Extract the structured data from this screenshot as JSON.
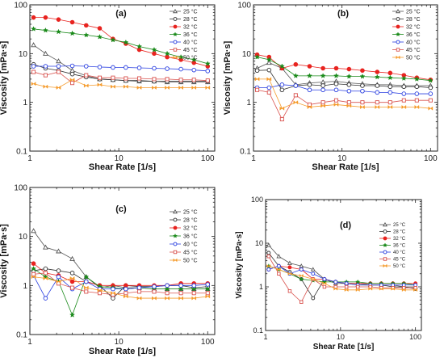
{
  "figure": {
    "xlabel": "Shear Rate [1/s]",
    "ylabel": "Viscosity [mPa·s]"
  },
  "series_style": {
    "25 °C": {
      "color": "#555555",
      "marker": "triangle-open"
    },
    "28 °C": {
      "color": "#333333",
      "marker": "circle-open"
    },
    "32 °C": {
      "color": "#e8231f",
      "marker": "circle-filled"
    },
    "36 °C": {
      "color": "#1a8a1a",
      "marker": "star"
    },
    "40 °C": {
      "color": "#2a3fe0",
      "marker": "circle-open"
    },
    "45 °C": {
      "color": "#d9534f",
      "marker": "square-open"
    },
    "50 °C": {
      "color": "#f59b2c",
      "marker": "bowtie"
    }
  },
  "chart_data": [
    {
      "type": "line",
      "panel": "(a)",
      "xscale": "log",
      "yscale": "log",
      "xlim": [
        1,
        120
      ],
      "ylim": [
        0.1,
        100
      ],
      "xticks": [
        "1",
        "10",
        "100"
      ],
      "yticks": [
        "0.1",
        "1",
        "10",
        "100"
      ],
      "xlabel": "Shear Rate [1/s]",
      "ylabel": "Viscosity [mPa·s]",
      "legend": "top-right",
      "series": [
        {
          "name": "25 °C",
          "x": [
            1.1,
            1.5,
            2.1,
            3.0,
            4.3,
            6.1,
            8.6,
            12,
            17,
            25,
            35,
            50,
            70,
            100
          ],
          "y": [
            15,
            10,
            7,
            4.5,
            3.5,
            3.0,
            2.9,
            2.8,
            2.7,
            2.7,
            2.6,
            2.6,
            2.6,
            2.6
          ]
        },
        {
          "name": "28 °C",
          "x": [
            1.1,
            1.5,
            2.1,
            3.0,
            4.3,
            6.1,
            8.6,
            12,
            17,
            25,
            35,
            50,
            70,
            100
          ],
          "y": [
            6,
            5,
            4.5,
            3.8,
            3.3,
            3.0,
            2.9,
            2.8,
            2.8,
            2.7,
            2.7,
            2.7,
            2.7,
            2.7
          ]
        },
        {
          "name": "32 °C",
          "x": [
            1.1,
            1.5,
            2.1,
            3.0,
            4.3,
            6.1,
            8.6,
            12,
            17,
            25,
            35,
            50,
            70,
            100
          ],
          "y": [
            55,
            55,
            50,
            44,
            38,
            33,
            20,
            16,
            12,
            10,
            8.5,
            7.5,
            6.5,
            5.5
          ]
        },
        {
          "name": "36 °C",
          "x": [
            1.1,
            1.5,
            2.1,
            3.0,
            4.3,
            6.1,
            8.6,
            12,
            17,
            25,
            35,
            50,
            70,
            100
          ],
          "y": [
            32,
            30,
            28,
            26,
            24,
            22,
            19,
            17,
            14,
            12,
            10,
            8.5,
            7.5,
            6.2
          ]
        },
        {
          "name": "40 °C",
          "x": [
            1.1,
            1.5,
            2.1,
            3.0,
            4.3,
            6.1,
            8.6,
            12,
            17,
            25,
            35,
            50,
            70,
            100
          ],
          "y": [
            5.5,
            5.5,
            5.5,
            5.6,
            5.5,
            5.3,
            5.2,
            5.2,
            5.1,
            5.0,
            4.9,
            4.8,
            4.6,
            4.4
          ]
        },
        {
          "name": "45 °C",
          "x": [
            1.1,
            1.5,
            2.1,
            3.0,
            4.3,
            6.1,
            8.6,
            12,
            17,
            25,
            35,
            50,
            70,
            100
          ],
          "y": [
            4.2,
            3.6,
            4.2,
            2.5,
            3.6,
            3.2,
            3.2,
            3.1,
            3.1,
            3.0,
            3.0,
            2.9,
            2.9,
            2.8
          ]
        },
        {
          "name": "50 °C",
          "x": [
            1.1,
            1.5,
            2.1,
            3.0,
            4.3,
            6.1,
            8.6,
            12,
            17,
            25,
            35,
            50,
            70,
            100
          ],
          "y": [
            2.4,
            2.1,
            2.0,
            2.9,
            2.2,
            2.3,
            2.1,
            2.1,
            2.0,
            2.0,
            2.0,
            2.0,
            2.0,
            2.0
          ]
        }
      ]
    },
    {
      "type": "line",
      "panel": "(b)",
      "xscale": "log",
      "yscale": "log",
      "xlim": [
        1,
        120
      ],
      "ylim": [
        0.1,
        100
      ],
      "xticks": [
        "1",
        "10",
        "100"
      ],
      "yticks": [
        "0.1",
        "1",
        "10",
        "100"
      ],
      "xlabel": "Shear Rate [1/s]",
      "ylabel": "Viscosity [mPa·s]",
      "legend": "top-right",
      "series": [
        {
          "name": "25 °C",
          "x": [
            1.1,
            1.5,
            2.1,
            3.0,
            4.3,
            6.1,
            8.6,
            12,
            17,
            25,
            35,
            50,
            70,
            100
          ],
          "y": [
            5.0,
            6.5,
            5.0,
            2.3,
            2.5,
            2.6,
            2.7,
            2.5,
            2.4,
            2.3,
            2.3,
            2.2,
            2.2,
            2.2
          ]
        },
        {
          "name": "28 °C",
          "x": [
            1.1,
            1.5,
            2.1,
            3.0,
            4.3,
            6.1,
            8.6,
            12,
            17,
            25,
            35,
            50,
            70,
            100
          ],
          "y": [
            4.5,
            4.6,
            1.8,
            2.2,
            2.3,
            2.2,
            2.4,
            2.3,
            2.2,
            2.2,
            2.1,
            2.1,
            2.1,
            2.0
          ]
        },
        {
          "name": "32 °C",
          "x": [
            1.1,
            1.5,
            2.1,
            3.0,
            4.3,
            6.1,
            8.6,
            12,
            17,
            25,
            35,
            50,
            70,
            100
          ],
          "y": [
            9.5,
            8.5,
            5.0,
            6.0,
            5.5,
            5.0,
            5.0,
            4.8,
            4.5,
            4.2,
            4.0,
            3.6,
            3.2,
            2.9
          ]
        },
        {
          "name": "36 °C",
          "x": [
            1.1,
            1.5,
            2.1,
            3.0,
            4.3,
            6.1,
            8.6,
            12,
            17,
            25,
            35,
            50,
            70,
            100
          ],
          "y": [
            8.5,
            7.5,
            5.5,
            3.5,
            3.5,
            3.5,
            3.5,
            3.4,
            3.4,
            3.3,
            3.2,
            3.1,
            3.0,
            2.8
          ]
        },
        {
          "name": "40 °C",
          "x": [
            1.1,
            1.5,
            2.1,
            3.0,
            4.3,
            6.1,
            8.6,
            12,
            17,
            25,
            35,
            50,
            70,
            100
          ],
          "y": [
            2.0,
            2.0,
            2.3,
            2.2,
            1.8,
            1.8,
            1.8,
            1.7,
            1.7,
            1.6,
            1.6,
            1.5,
            1.5,
            1.5
          ]
        },
        {
          "name": "45 °C",
          "x": [
            1.1,
            1.5,
            2.1,
            3.0,
            4.3,
            6.1,
            8.6,
            12,
            17,
            25,
            35,
            50,
            70,
            100
          ],
          "y": [
            1.8,
            1.6,
            0.45,
            1.4,
            0.9,
            1.0,
            1.1,
            1.0,
            1.0,
            1.0,
            1.0,
            1.1,
            1.1,
            1.1
          ]
        },
        {
          "name": "50 °C",
          "x": [
            1.1,
            1.5,
            2.1,
            3.0,
            4.3,
            6.1,
            8.6,
            12,
            17,
            25,
            35,
            50,
            70,
            100
          ],
          "y": [
            3.0,
            3.0,
            0.75,
            1.0,
            0.8,
            0.85,
            0.9,
            0.85,
            0.8,
            0.8,
            0.8,
            0.8,
            0.8,
            0.75
          ]
        }
      ]
    },
    {
      "type": "line",
      "panel": "(c)",
      "xscale": "log",
      "yscale": "log",
      "xlim": [
        1,
        120
      ],
      "ylim": [
        0.1,
        100
      ],
      "xticks": [
        "1",
        "10",
        "100"
      ],
      "yticks": [
        "0.1",
        "1",
        "10",
        "100"
      ],
      "xlabel": "Shear Rate [1/s]",
      "ylabel": "Viscosity [mPa·s]",
      "legend": "top-right",
      "series": [
        {
          "name": "25 °C",
          "x": [
            1.1,
            1.5,
            2.1,
            3.0,
            4.3,
            6.1,
            8.6,
            12,
            17,
            25,
            35,
            50,
            70,
            100
          ],
          "y": [
            13,
            6,
            5.0,
            3.5,
            1.5,
            0.9,
            1.0,
            0.9,
            0.9,
            0.85,
            0.85,
            0.85,
            0.85,
            0.85
          ]
        },
        {
          "name": "28 °C",
          "x": [
            1.1,
            1.5,
            2.1,
            3.0,
            4.3,
            6.1,
            8.6,
            12,
            17,
            25,
            35,
            50,
            70,
            100
          ],
          "y": [
            2.0,
            2.2,
            2.0,
            1.8,
            1.2,
            1.0,
            0.55,
            1.0,
            0.95,
            0.95,
            1.0,
            1.0,
            0.9,
            0.95
          ]
        },
        {
          "name": "32 °C",
          "x": [
            1.1,
            1.5,
            2.1,
            3.0,
            4.3,
            6.1,
            8.6,
            12,
            17,
            25,
            35,
            50,
            70,
            100
          ],
          "y": [
            2.8,
            1.8,
            1.6,
            1.2,
            1.2,
            1.0,
            1.0,
            1.0,
            1.0,
            1.0,
            1.0,
            1.1,
            1.1,
            1.1
          ]
        },
        {
          "name": "36 °C",
          "x": [
            1.1,
            1.5,
            2.1,
            3.0,
            4.3,
            6.1,
            8.6,
            12,
            17,
            25,
            35,
            50,
            70,
            100
          ],
          "y": [
            2.2,
            1.5,
            1.2,
            0.25,
            1.5,
            0.95,
            0.9,
            0.85,
            0.9,
            0.85,
            0.85,
            0.85,
            0.85,
            0.85
          ]
        },
        {
          "name": "40 °C",
          "x": [
            1.1,
            1.5,
            2.1,
            3.0,
            4.3,
            6.1,
            8.6,
            12,
            17,
            25,
            35,
            50,
            70,
            100
          ],
          "y": [
            1.6,
            0.55,
            1.5,
            0.85,
            1.2,
            0.85,
            0.85,
            0.85,
            0.9,
            0.95,
            1.0,
            1.0,
            1.0,
            1.05
          ]
        },
        {
          "name": "45 °C",
          "x": [
            1.1,
            1.5,
            2.1,
            3.0,
            4.3,
            6.1,
            8.6,
            12,
            17,
            25,
            35,
            50,
            70,
            100
          ],
          "y": [
            1.7,
            1.8,
            1.1,
            0.9,
            0.75,
            0.7,
            0.65,
            0.7,
            0.75,
            0.75,
            0.7,
            0.7,
            0.7,
            0.7
          ]
        },
        {
          "name": "50 °C",
          "x": [
            1.1,
            1.5,
            2.1,
            3.0,
            4.3,
            6.1,
            8.6,
            12,
            17,
            25,
            35,
            50,
            70,
            100
          ],
          "y": [
            1.5,
            1.4,
            1.2,
            1.4,
            0.9,
            0.8,
            0.7,
            0.6,
            0.55,
            0.55,
            0.55,
            0.55,
            0.55,
            0.6
          ]
        }
      ]
    },
    {
      "type": "line",
      "panel": "(d)",
      "xscale": "log",
      "yscale": "log",
      "xlim": [
        1,
        120
      ],
      "ylim": [
        0.1,
        100
      ],
      "xticks": [
        "1",
        "10",
        "100"
      ],
      "yticks": [
        "0.1",
        "1",
        "10",
        "100"
      ],
      "xlabel": "Shear Rate [1/s]",
      "ylabel": "Viscosity [mPa·s]",
      "legend": "top-right",
      "series": [
        {
          "name": "25 °C",
          "x": [
            1.1,
            1.5,
            2.1,
            3.0,
            4.3,
            6.1,
            8.6,
            12,
            17,
            25,
            35,
            50,
            70,
            100
          ],
          "y": [
            9,
            5,
            3.5,
            3.0,
            2.5,
            1.5,
            1.2,
            1.2,
            1.1,
            1.1,
            1.1,
            1.1,
            1.0,
            1.0
          ]
        },
        {
          "name": "28 °C",
          "x": [
            1.1,
            1.5,
            2.1,
            3.0,
            4.3,
            6.1,
            8.6,
            12,
            17,
            25,
            35,
            50,
            70,
            100
          ],
          "y": [
            6,
            3.0,
            2.2,
            1.5,
            0.55,
            1.5,
            1.3,
            1.2,
            1.2,
            1.1,
            1.1,
            1.0,
            1.0,
            0.9
          ]
        },
        {
          "name": "32 °C",
          "x": [
            1.1,
            1.5,
            2.1,
            3.0,
            4.3,
            6.1,
            8.6,
            12,
            17,
            25,
            35,
            50,
            70,
            100
          ],
          "y": [
            2.5,
            3.0,
            2.8,
            2.5,
            1.5,
            1.5,
            1.3,
            1.2,
            1.2,
            1.2,
            1.2,
            1.2,
            1.2,
            1.2
          ]
        },
        {
          "name": "36 °C",
          "x": [
            1.1,
            1.5,
            2.1,
            3.0,
            4.3,
            6.1,
            8.6,
            12,
            17,
            25,
            35,
            50,
            70,
            100
          ],
          "y": [
            3.0,
            2.5,
            2.0,
            1.5,
            1.4,
            1.3,
            1.3,
            1.3,
            1.3,
            1.2,
            1.2,
            1.2,
            1.2,
            1.1
          ]
        },
        {
          "name": "40 °C",
          "x": [
            1.1,
            1.5,
            2.1,
            3.0,
            4.3,
            6.1,
            8.6,
            12,
            17,
            25,
            35,
            50,
            70,
            100
          ],
          "y": [
            2.5,
            3.0,
            2.0,
            2.5,
            2.0,
            1.5,
            1.3,
            1.2,
            1.1,
            1.1,
            1.1,
            1.1,
            1.1,
            1.1
          ]
        },
        {
          "name": "45 °C",
          "x": [
            1.1,
            1.5,
            2.1,
            3.0,
            4.3,
            6.1,
            8.6,
            12,
            17,
            25,
            35,
            50,
            70,
            100
          ],
          "y": [
            5,
            2.0,
            0.8,
            0.45,
            1.5,
            1.0,
            1.0,
            1.0,
            1.0,
            1.0,
            0.95,
            0.95,
            0.95,
            0.95
          ]
        },
        {
          "name": "50 °C",
          "x": [
            1.1,
            1.5,
            2.1,
            3.0,
            4.3,
            6.1,
            8.6,
            12,
            17,
            25,
            35,
            50,
            70,
            100
          ],
          "y": [
            3.0,
            2.5,
            2.0,
            1.8,
            1.5,
            1.2,
            0.9,
            0.85,
            0.85,
            0.9,
            0.9,
            0.9,
            0.85,
            0.85
          ]
        }
      ]
    }
  ]
}
